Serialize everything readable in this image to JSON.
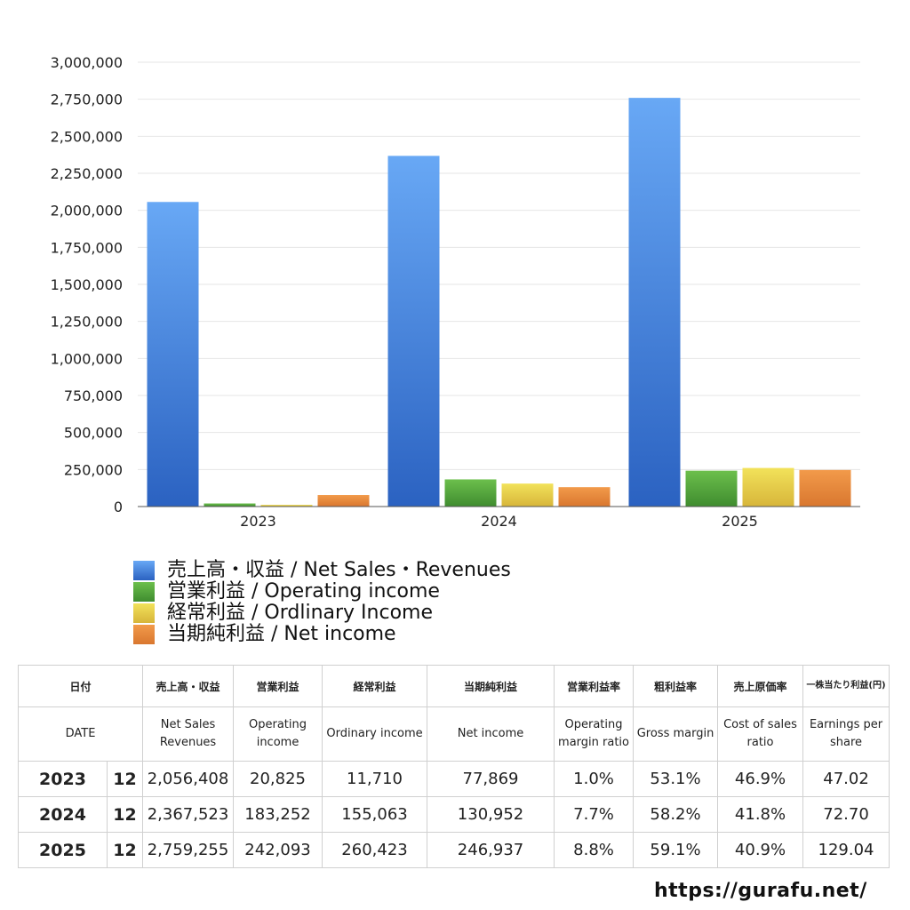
{
  "chart_data": {
    "type": "bar",
    "categories": [
      "2023",
      "2024",
      "2025"
    ],
    "series": [
      {
        "name": "売上高・収益 / Net Sales・Revenues",
        "values": [
          2056408,
          2367523,
          2759255
        ],
        "color_top": "#68a8f5",
        "color_bottom": "#2b62c1"
      },
      {
        "name": "営業利益 / Operating income",
        "values": [
          20825,
          183252,
          242093
        ],
        "color_top": "#6cbf4c",
        "color_bottom": "#3f8c2f"
      },
      {
        "name": "経常利益 / Ordlinary Income",
        "values": [
          11710,
          155063,
          260423
        ],
        "color_top": "#f2e25a",
        "color_bottom": "#d7b53a"
      },
      {
        "name": "当期純利益 / Net income",
        "values": [
          77869,
          130952,
          246937
        ],
        "color_top": "#f29a4a",
        "color_bottom": "#d9772f"
      }
    ],
    "ylim": [
      0,
      3000000
    ],
    "y_ticks": [
      "0",
      "250,000",
      "500,000",
      "750,000",
      "1,000,000",
      "1,250,000",
      "1,500,000",
      "1,750,000",
      "2,000,000",
      "2,250,000",
      "2,500,000",
      "2,750,000",
      "3,000,000"
    ],
    "title": "",
    "xlabel": "",
    "ylabel": "",
    "grid": true,
    "legend_position": "bottom-left"
  },
  "table": {
    "headers_jp": [
      "日付",
      "売上高・収益",
      "営業利益",
      "経常利益",
      "当期純利益",
      "営業利益率",
      "粗利益率",
      "売上原価率",
      "一株当たり利益(円)"
    ],
    "headers_en": [
      "DATE",
      "Net Sales Revenues",
      "Operating income",
      "Ordinary income",
      "Net income",
      "Operating margin ratio",
      "Gross margin",
      "Cost of sales ratio",
      "Earnings per share"
    ],
    "rows": [
      {
        "year": "2023",
        "month": "12",
        "sales": "2,056,408",
        "op": "20,825",
        "ord": "11,710",
        "net": "77,869",
        "opm": "1.0%",
        "gm": "53.1%",
        "cos": "46.9%",
        "eps": "47.02"
      },
      {
        "year": "2024",
        "month": "12",
        "sales": "2,367,523",
        "op": "183,252",
        "ord": "155,063",
        "net": "130,952",
        "opm": "7.7%",
        "gm": "58.2%",
        "cos": "41.8%",
        "eps": "72.70"
      },
      {
        "year": "2025",
        "month": "12",
        "sales": "2,759,255",
        "op": "242,093",
        "ord": "260,423",
        "net": "246,937",
        "opm": "8.8%",
        "gm": "59.1%",
        "cos": "40.9%",
        "eps": "129.04"
      }
    ]
  },
  "footer": {
    "url": "https://gurafu.net/"
  }
}
